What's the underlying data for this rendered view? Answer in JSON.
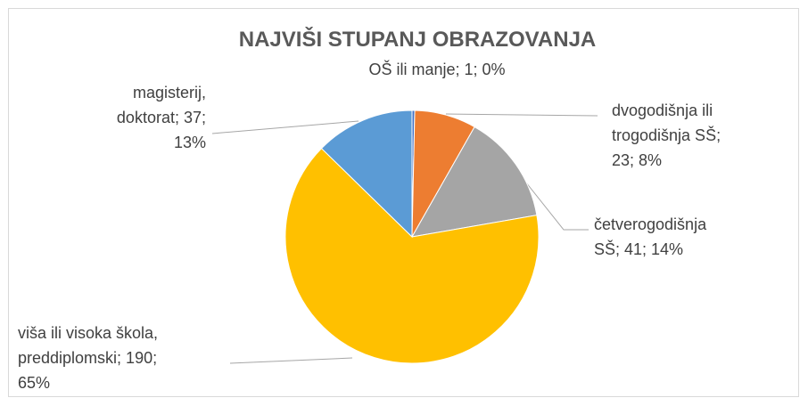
{
  "chart_data": {
    "type": "pie",
    "title": "NAJVIŠI STUPANJ OBRAZOVANJA",
    "categories": [
      "OŠ ili manje",
      "dvogodišnja ili trogodišnja SŠ",
      "četverogodišnja SŠ",
      "viša ili visoka škola, preddiplomski",
      "magisterij, doktorat"
    ],
    "values": [
      1,
      23,
      41,
      190,
      37
    ],
    "value_labels": [
      [
        "OŠ ili manje; 1; 0%"
      ],
      [
        "dvogodišnja ili",
        "trogodišnja SŠ;",
        "23; 8%"
      ],
      [
        "četverogodišnja",
        "SŠ; 41; 14%"
      ],
      [
        "viša ili visoka škola,",
        "preddiplomski; 190;",
        "65%"
      ],
      [
        "magisterij,",
        "doktorat; 37;",
        "13%"
      ]
    ],
    "colors": [
      "#4472c4",
      "#ed7d31",
      "#a5a5a5",
      "#ffc000",
      "#5b9bd5"
    ]
  }
}
